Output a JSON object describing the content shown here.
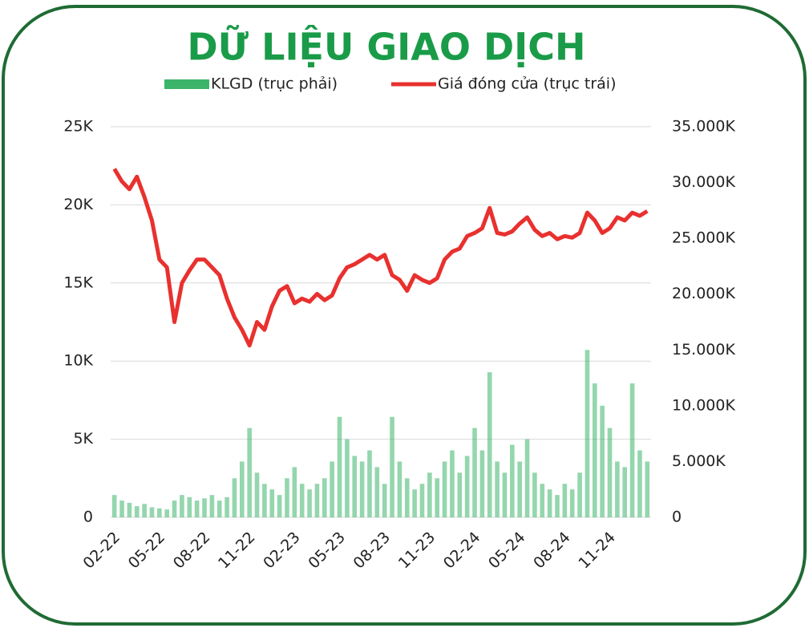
{
  "chart_data": {
    "type": "combo",
    "title": "DỮ LIỆU GIAO DỊCH",
    "categories": [
      "02-22",
      null,
      null,
      null,
      null,
      null,
      "05-22",
      null,
      null,
      null,
      null,
      null,
      "08-22",
      null,
      null,
      null,
      null,
      null,
      "11-22",
      null,
      null,
      null,
      null,
      null,
      "02-23",
      null,
      null,
      null,
      null,
      null,
      "05-23",
      null,
      null,
      null,
      null,
      null,
      "08-23",
      null,
      null,
      null,
      null,
      null,
      "11-23",
      null,
      null,
      null,
      null,
      null,
      "02-24",
      null,
      null,
      null,
      null,
      null,
      "05-24",
      null,
      null,
      null,
      null,
      null,
      "08-24",
      null,
      null,
      null,
      null,
      null,
      "11-24",
      null,
      null,
      null,
      null,
      null
    ],
    "series": [
      {
        "name": "KLGD (trục phải)",
        "type": "bar",
        "axis": "y2",
        "color": "#3cb56a",
        "values": [
          2000000,
          1500000,
          1300000,
          1000000,
          1200000,
          900000,
          800000,
          700000,
          1500000,
          2000000,
          1800000,
          1500000,
          1700000,
          2000000,
          1500000,
          1800000,
          3500000,
          5000000,
          8000000,
          4000000,
          3000000,
          2500000,
          2000000,
          3500000,
          4500000,
          3000000,
          2500000,
          3000000,
          3500000,
          5000000,
          9000000,
          7000000,
          5500000,
          5000000,
          6000000,
          4500000,
          3000000,
          9000000,
          5000000,
          3500000,
          2500000,
          3000000,
          4000000,
          3500000,
          5000000,
          6000000,
          4000000,
          5500000,
          8000000,
          6000000,
          13000000,
          5000000,
          4000000,
          6500000,
          5000000,
          7000000,
          4000000,
          3000000,
          2500000,
          2000000,
          3000000,
          2500000,
          4000000,
          15000000,
          12000000,
          10000000,
          8000000,
          5000000,
          4500000,
          12000000,
          6000000,
          5000000
        ]
      },
      {
        "name": "Giá đóng cửa (trục trái)",
        "type": "line",
        "color": "#e8312f",
        "values": [
          22300,
          21500,
          21000,
          21800,
          20500,
          19000,
          16500,
          16000,
          12500,
          15000,
          15800,
          16500,
          16500,
          16000,
          15500,
          14000,
          12800,
          12000,
          11000,
          12500,
          12000,
          13500,
          14500,
          14800,
          13700,
          14000,
          13800,
          14300,
          13900,
          14200,
          15300,
          16000,
          16200,
          16500,
          16800,
          16500,
          16800,
          15500,
          15200,
          14500,
          15500,
          15200,
          15000,
          15300,
          16500,
          17000,
          17200,
          18000,
          18200,
          18500,
          19800,
          18200,
          18100,
          18300,
          18800,
          19200,
          18400,
          18000,
          18200,
          17800,
          18000,
          17900,
          18200,
          19500,
          19000,
          18200,
          18500,
          19200,
          19000,
          19500,
          19300,
          19600
        ]
      }
    ],
    "ylim": [
      0,
      25000
    ],
    "yticks": [
      0,
      {
        "value": 5000,
        "label": "5K"
      },
      {
        "value": 10000,
        "label": "10K"
      },
      {
        "value": 15000,
        "label": "15K"
      },
      {
        "value": 20000,
        "label": "20K"
      },
      {
        "value": 25000,
        "label": "25K"
      }
    ],
    "y2lim": [
      0,
      35000000
    ],
    "y2ticks": [
      0,
      {
        "value": 5000000,
        "label": "5.000K"
      },
      {
        "value": 10000000,
        "label": "10.000K"
      },
      {
        "value": 15000000,
        "label": "15.000K"
      },
      {
        "value": 20000000,
        "label": "20.000K"
      },
      {
        "value": 25000000,
        "label": "25.000K"
      },
      {
        "value": 30000000,
        "label": "30.000K"
      },
      {
        "value": 35000000,
        "label": "35.000K"
      }
    ],
    "grid": true
  }
}
